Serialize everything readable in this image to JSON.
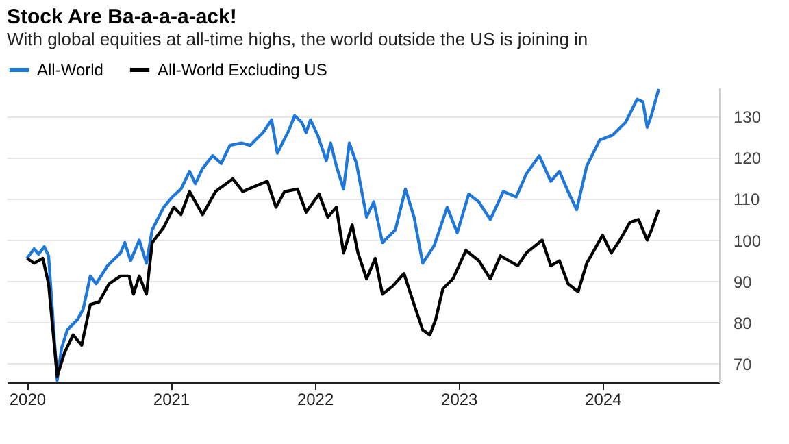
{
  "chart_data": {
    "type": "line",
    "title": "Stock Are Ba-a-a-a-ack!",
    "subtitle": "With global equities at all-time highs, the world outside the US is joining in",
    "xlim": [
      2019.86,
      2024.81
    ],
    "xticks": [
      2020,
      2021,
      2022,
      2023,
      2024
    ],
    "ylim": [
      65.5,
      137
    ],
    "yticks": [
      70,
      80,
      90,
      100,
      110,
      120,
      130
    ],
    "grid": "y",
    "legend": "top left",
    "line_style": "solid",
    "marker": "none",
    "series": [
      {
        "name": "All-World",
        "color": "#1f78d8",
        "x": [
          2020.0,
          2020.05,
          2020.08,
          2020.12,
          2020.15,
          2020.21,
          2020.24,
          2020.28,
          2020.35,
          2020.39,
          2020.44,
          2020.48,
          2020.56,
          2020.65,
          2020.68,
          2020.72,
          2020.78,
          2020.83,
          2020.87,
          2020.95,
          2021.01,
          2021.07,
          2021.13,
          2021.17,
          2021.22,
          2021.29,
          2021.35,
          2021.41,
          2021.49,
          2021.55,
          2021.64,
          2021.7,
          2021.74,
          2021.82,
          2021.86,
          2021.91,
          2021.94,
          2021.97,
          2022.02,
          2022.08,
          2022.11,
          2022.15,
          2022.2,
          2022.24,
          2022.29,
          2022.36,
          2022.41,
          2022.47,
          2022.56,
          2022.63,
          2022.69,
          2022.75,
          2022.83,
          2022.92,
          2022.99,
          2023.07,
          2023.14,
          2023.22,
          2023.31,
          2023.4,
          2023.47,
          2023.56,
          2023.64,
          2023.7,
          2023.76,
          2023.82,
          2023.89,
          2023.98,
          2024.07,
          2024.16,
          2024.24,
          2024.28,
          2024.31,
          2024.34,
          2024.39
        ],
        "values": [
          95.6,
          97.9,
          96.6,
          98.4,
          96.2,
          66,
          73.8,
          78.2,
          80.7,
          83.2,
          91.3,
          89.4,
          93.8,
          96.9,
          99.4,
          95,
          100,
          94.4,
          102.5,
          108,
          110.5,
          112.4,
          116.7,
          113.7,
          117.4,
          120.5,
          118.6,
          123,
          123.6,
          123,
          126.1,
          129.2,
          121.1,
          126.7,
          130.2,
          128.6,
          126.1,
          129.2,
          125.5,
          119.3,
          123.6,
          118,
          112.4,
          123.6,
          118.6,
          105.6,
          109.3,
          99.4,
          102.5,
          112.4,
          105.6,
          94.4,
          98.7,
          108,
          101.8,
          111.2,
          109.3,
          105,
          111.8,
          110.5,
          116.1,
          120.5,
          114.3,
          116.7,
          111.8,
          107.4,
          118,
          124.3,
          125.5,
          128.6,
          134.2,
          133.6,
          127.4,
          130.4,
          136.7
        ]
      },
      {
        "name": "All-World Excluding US",
        "color": "#000000",
        "x": [
          2020.0,
          2020.05,
          2020.11,
          2020.15,
          2020.21,
          2020.26,
          2020.32,
          2020.38,
          2020.44,
          2020.5,
          2020.57,
          2020.65,
          2020.71,
          2020.74,
          2020.78,
          2020.83,
          2020.87,
          2020.95,
          2021.02,
          2021.07,
          2021.13,
          2021.22,
          2021.31,
          2021.43,
          2021.5,
          2021.58,
          2021.67,
          2021.73,
          2021.79,
          2021.88,
          2021.94,
          2022.03,
          2022.09,
          2022.15,
          2022.2,
          2022.26,
          2022.3,
          2022.36,
          2022.42,
          2022.47,
          2022.54,
          2022.62,
          2022.69,
          2022.75,
          2022.8,
          2022.84,
          2022.89,
          2022.96,
          2023.05,
          2023.14,
          2023.22,
          2023.29,
          2023.41,
          2023.47,
          2023.58,
          2023.64,
          2023.7,
          2023.76,
          2023.83,
          2023.89,
          2024.0,
          2024.06,
          2024.12,
          2024.19,
          2024.25,
          2024.31,
          2024.34,
          2024.39
        ],
        "values": [
          95.6,
          94.4,
          95.6,
          89.4,
          67,
          72.6,
          77,
          74.5,
          84.4,
          85,
          89.4,
          91.3,
          91.3,
          86.9,
          91.3,
          86.9,
          99.4,
          103.1,
          108,
          106.2,
          111.8,
          106.2,
          111.8,
          114.9,
          111.8,
          113,
          114.3,
          108,
          111.8,
          112.4,
          106.8,
          111.2,
          105.6,
          108,
          96.9,
          103.7,
          96.9,
          90.6,
          95.6,
          86.9,
          88.8,
          91.9,
          84.4,
          78.2,
          77,
          80.7,
          88.2,
          90.6,
          97.5,
          95,
          90.6,
          96.2,
          93.8,
          96.9,
          100,
          93.8,
          95,
          89.4,
          87.5,
          94.4,
          101.2,
          96.9,
          100,
          104.3,
          105,
          100,
          102.5,
          107.4
        ]
      }
    ]
  }
}
